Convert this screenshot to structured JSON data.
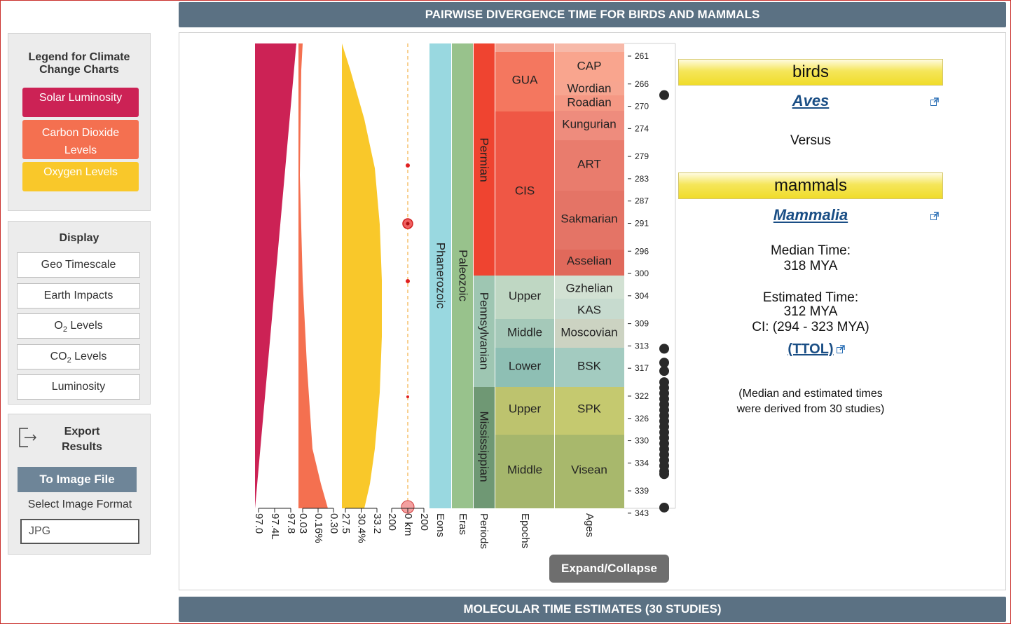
{
  "header": {
    "title": "PAIRWISE DIVERGENCE TIME FOR BIRDS AND MAMMALS"
  },
  "footer": {
    "title": "MOLECULAR TIME ESTIMATES (30 STUDIES)"
  },
  "legend": {
    "title_line1": "Legend for Climate",
    "title_line2": "Change Charts",
    "items": [
      {
        "line1": "Solar Luminosity",
        "line2": "",
        "color": "#cc2255"
      },
      {
        "line1": "Carbon Dioxide",
        "line2": "Levels",
        "color": "#f47050"
      },
      {
        "line1": "Oxygen Levels",
        "line2": "",
        "color": "#f9c82a"
      }
    ]
  },
  "display": {
    "title": "Display",
    "buttons": [
      {
        "label": "Geo Timescale"
      },
      {
        "label": "Earth Impacts"
      },
      {
        "pre": "O",
        "sub": "2",
        "post": " Levels"
      },
      {
        "pre": "CO",
        "sub": "2",
        "post": " Levels"
      },
      {
        "label": "Luminosity"
      }
    ]
  },
  "export": {
    "title_line1": "Export",
    "title_line2": "Results",
    "button": "To Image File",
    "format_label": "Select Image Format",
    "format_value": "JPG"
  },
  "chart_data": {
    "type": "timescale",
    "y_unit": "MYA",
    "y_range": [
      258,
      346
    ],
    "ticks": [
      261,
      266,
      270,
      274,
      279,
      283,
      287,
      291,
      296,
      300,
      304,
      309,
      313,
      317,
      322,
      326,
      330,
      334,
      339,
      343
    ],
    "climate_axis_labels": {
      "luminosity": [
        "97.0",
        "97.4L",
        "97.8"
      ],
      "co2": [
        "0.03",
        "0.16%",
        "0.30"
      ],
      "oxygen": [
        "27.5",
        "30.4%",
        "33.2"
      ],
      "impacts": [
        "200",
        "0 km",
        "200"
      ]
    },
    "column_labels": [
      "Eons",
      "Eras",
      "Periods",
      "Epochs",
      "Ages"
    ],
    "eons": [
      {
        "name": "Phanerozoic",
        "color": "#99d8e0"
      }
    ],
    "eras": [
      {
        "name": "Paleozoic",
        "color": "#98c28c"
      }
    ],
    "periods": [
      {
        "name": "Permian",
        "color": "#ef4430"
      },
      {
        "name": "Pennsylvanian",
        "color": "#9ec6b2"
      },
      {
        "name": "Mississippian",
        "color": "#6f9874"
      }
    ],
    "epochs": [
      {
        "name": "",
        "color": "#f4a291"
      },
      {
        "name": "GUA",
        "color": "#f4775f"
      },
      {
        "name": "CIS",
        "color": "#ef5745"
      },
      {
        "name": "Upper",
        "color": "#bfd7c3"
      },
      {
        "name": "Middle",
        "color": "#a5c9b9"
      },
      {
        "name": "Lower",
        "color": "#8ebfb4"
      },
      {
        "name": "Upper",
        "color": "#bdc36e"
      },
      {
        "name": "Middle",
        "color": "#a5b66c"
      }
    ],
    "ages": [
      {
        "name": "",
        "color": "#f7b9a9"
      },
      {
        "name": "CAP",
        "color": "#f9a58e"
      },
      {
        "name": "Wordian",
        "color": "#f7a590"
      },
      {
        "name": "Roadian",
        "color": "#f59884"
      },
      {
        "name": "Kungurian",
        "color": "#ee8c7d"
      },
      {
        "name": "ART",
        "color": "#e97c6d"
      },
      {
        "name": "Sakmarian",
        "color": "#e47466"
      },
      {
        "name": "Asselian",
        "color": "#e0695b"
      },
      {
        "name": "Gzhelian",
        "color": "#d2e1d3"
      },
      {
        "name": "KAS",
        "color": "#c7dbcf"
      },
      {
        "name": "Moscovian",
        "color": "#ccd3c2"
      },
      {
        "name": "BSK",
        "color": "#a3cbc0"
      },
      {
        "name": "SPK",
        "color": "#c5c96f"
      },
      {
        "name": "Visean",
        "color": "#a8b86c"
      }
    ],
    "study_points_mya": [
      268,
      313.5,
      316,
      317.5,
      319.5,
      320.5,
      321.5,
      322.5,
      323.5,
      324.5,
      325.5,
      326.5,
      327.5,
      328.5,
      329.5,
      330.5,
      331.5,
      332.5,
      333.5,
      334.5,
      335.5,
      336,
      342
    ]
  },
  "expand_button": "Expand/Collapse",
  "comparison": {
    "taxon_a": {
      "common": "birds",
      "scientific": "Aves"
    },
    "versus": "Versus",
    "taxon_b": {
      "common": "mammals",
      "scientific": "Mammalia"
    },
    "median_label": "Median Time:",
    "median_value": "318 MYA",
    "estimated_label": "Estimated Time:",
    "estimated_value": "312 MYA",
    "ci": "CI: (294 - 323 MYA)",
    "ttol": "(TTOL)",
    "note_line1": "(Median and estimated times",
    "note_line2": "were derived from 30 studies)"
  }
}
